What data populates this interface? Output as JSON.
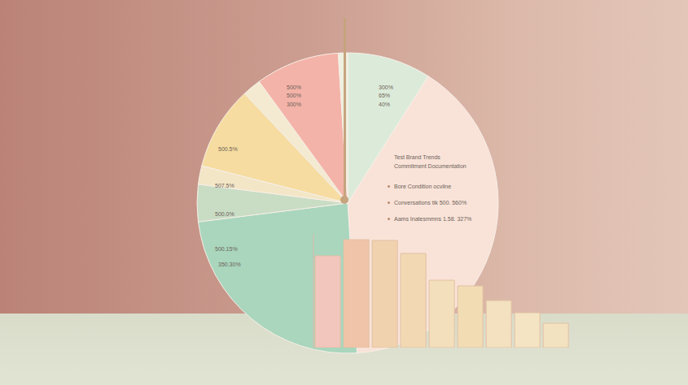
{
  "chart_data": [
    {
      "type": "pie",
      "values": [
        9,
        40,
        24,
        4,
        2,
        9,
        2,
        9,
        1
      ],
      "colors": [
        "#dcebd9",
        "#f9e3d8",
        "#a9d6bd",
        "#c9dcc4",
        "#f3e6c6",
        "#f6dca0",
        "#f4ead1",
        "#f4b3a8",
        "#eef0e0"
      ],
      "annotations": [
        "500%",
        "500%",
        "300%",
        "300%",
        "65%",
        "40%",
        "500.5%",
        "507.5%",
        "500.0%",
        "500.15%",
        "350.30%",
        "Test Brand Trends",
        "Commitment Documentation",
        "Bore Condition ocvilne",
        "Conversations tik 500. 560%",
        "Aams Inatesmmns 1.58. 327%"
      ]
    },
    {
      "type": "bar",
      "values": [
        113,
        133,
        132,
        116,
        83,
        76,
        58,
        43,
        30
      ],
      "colors": [
        "#f2c6bd",
        "#f0c4a8",
        "#f1d2ae",
        "#f2d9b3",
        "#f3dfbb",
        "#f2dcb4",
        "#f3e1bf",
        "#f4e4c4",
        "#f3e2c0"
      ],
      "ylim": [
        0,
        140
      ],
      "tick_labels": false
    }
  ]
}
